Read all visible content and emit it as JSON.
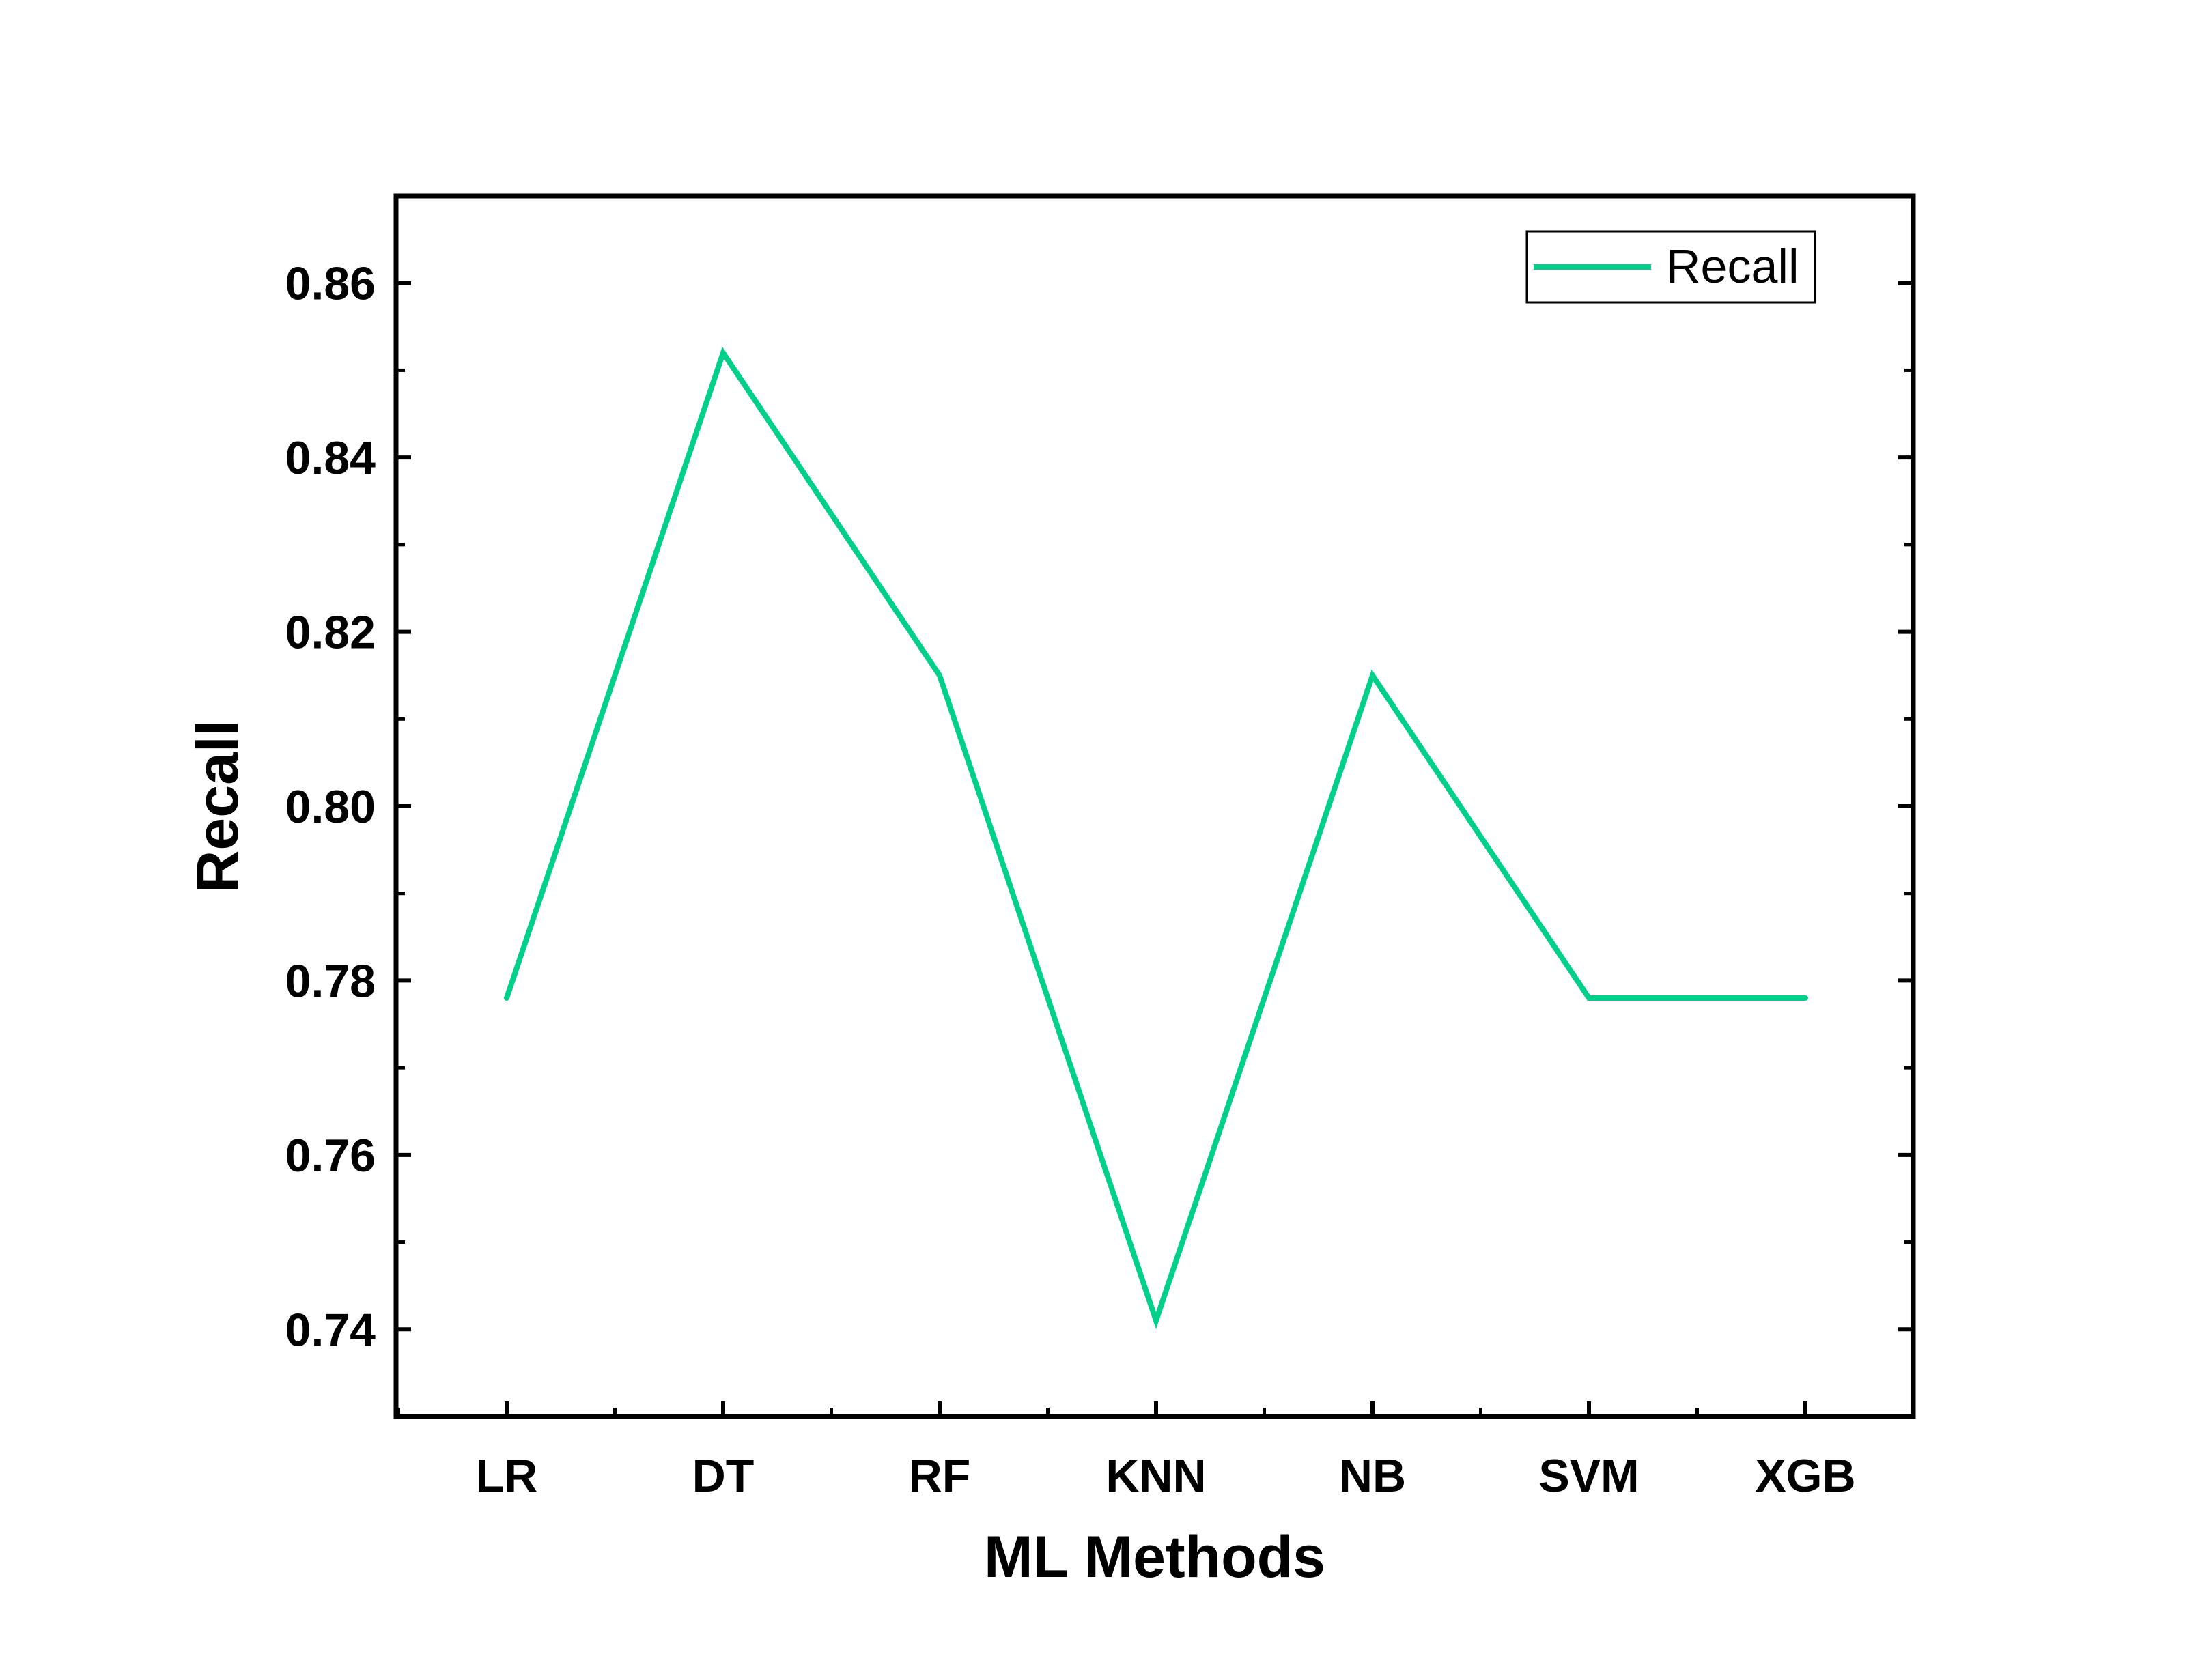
{
  "chart_data": {
    "type": "line",
    "categories": [
      "LR",
      "DT",
      "RF",
      "KNN",
      "NB",
      "SVM",
      "XGB"
    ],
    "series": [
      {
        "name": "Recall",
        "values": [
          0.778,
          0.852,
          0.815,
          0.741,
          0.815,
          0.778,
          0.778
        ],
        "color": "#00d08a"
      }
    ],
    "xlabel": "ML Methods",
    "ylabel": "Recall",
    "ylim": [
      0.73,
      0.87
    ],
    "yticks": [
      0.74,
      0.76,
      0.78,
      0.8,
      0.82,
      0.84,
      0.86
    ],
    "ytick_labels": [
      "0.74",
      "0.76",
      "0.78",
      "0.80",
      "0.82",
      "0.84",
      "0.86"
    ],
    "grid": false,
    "legend_position": "top-right"
  }
}
